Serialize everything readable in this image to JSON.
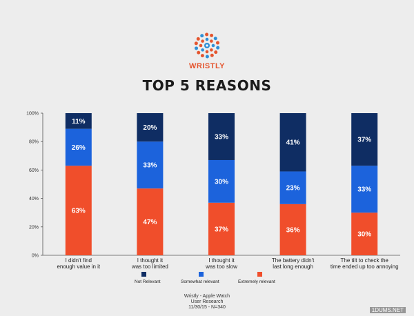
{
  "brand": {
    "name": "WRISTLY",
    "logo_icon": "dotted-sunburst-eye-icon"
  },
  "footer": {
    "line1": "Wristly - Apple Watch",
    "line2": "User Research",
    "line3": "11/30/15 - N=340"
  },
  "watermark": "1DUMS.NET",
  "chart_data": {
    "type": "bar",
    "stacked": true,
    "title": "TOP 5 REASONS",
    "ylim": [
      0,
      100
    ],
    "yticks": [
      "0%",
      "20%",
      "40%",
      "60%",
      "80%",
      "100%"
    ],
    "categories": [
      [
        "I didn't find",
        "enough value in it"
      ],
      [
        "I thought it",
        "was too limited"
      ],
      [
        "I thought it",
        "was too slow"
      ],
      [
        "The battery didn't",
        "last long enough"
      ],
      [
        "The tilt to check the",
        "time ended up too annoying"
      ]
    ],
    "series": [
      {
        "name": "Extremely relevant",
        "color": "#f04e2b",
        "values": [
          63,
          47,
          37,
          36,
          30
        ]
      },
      {
        "name": "Somewhat relevant",
        "color": "#1c63dc",
        "values": [
          26,
          33,
          30,
          23,
          33
        ]
      },
      {
        "name": "Not Relevant",
        "color": "#0f2d63",
        "values": [
          11,
          20,
          33,
          41,
          37
        ]
      }
    ],
    "legend_order": [
      "Not Relevant",
      "Somewhat relevant",
      "Extremely relevant"
    ],
    "legend_position": "bottom",
    "grid": false
  }
}
